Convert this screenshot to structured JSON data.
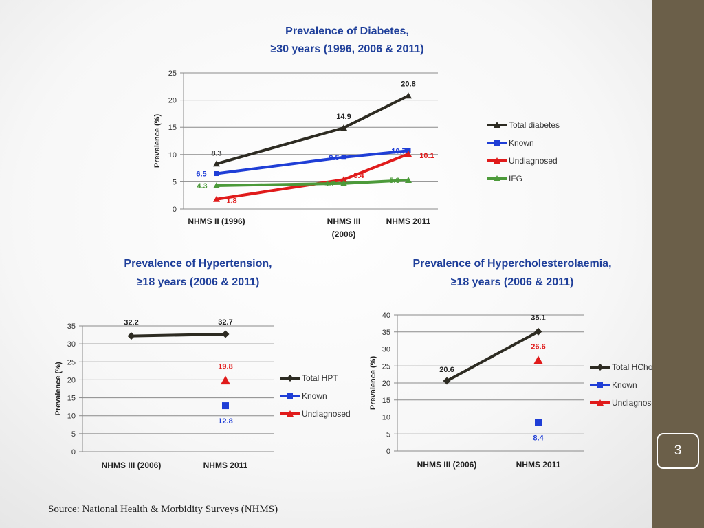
{
  "slide": {
    "page_number": "3",
    "source": "Source: National Health & Morbidity Surveys (NHMS)",
    "sidebar_color": "#6b5f49"
  },
  "colors": {
    "total": "#2d2b22",
    "known": "#1f3ed6",
    "undiagnosed": "#e01b1b",
    "ifg": "#4c9a3a",
    "title": "#1f3f9a"
  },
  "chart_data": [
    {
      "type": "line",
      "title": "Prevalence of Diabetes,",
      "subtitle": "≥30 years (1996, 2006 & 2011)",
      "ylabel": "Prevalence (%)",
      "xlabel": "",
      "x": [
        1996,
        2006,
        2011
      ],
      "categories": [
        "NHMS II (1996)",
        "NHMS III",
        "NHMS 2011"
      ],
      "category_sublabels": [
        "",
        "(2006)",
        ""
      ],
      "ylim": [
        0,
        25
      ],
      "yticks": [
        0,
        5,
        10,
        15,
        20,
        25
      ],
      "grid": true,
      "legend": "right",
      "series": [
        {
          "name": "Total diabetes",
          "values": [
            8.3,
            14.9,
            20.8
          ],
          "labels": [
            "8.3",
            "14.9",
            "20.8"
          ],
          "color": "#2d2b22",
          "marker": "triangle"
        },
        {
          "name": "Known",
          "values": [
            6.5,
            9.5,
            10.7
          ],
          "labels": [
            "6.5",
            "9.5",
            "10.7"
          ],
          "color": "#1f3ed6",
          "marker": "square"
        },
        {
          "name": "Undiagnosed",
          "values": [
            1.8,
            5.4,
            10.1
          ],
          "labels": [
            "1.8",
            "5.4",
            "10.1"
          ],
          "color": "#e01b1b",
          "marker": "triangle"
        },
        {
          "name": "IFG",
          "values": [
            4.3,
            4.7,
            5.3
          ],
          "labels": [
            "4.3",
            "4.7",
            "5.3"
          ],
          "color": "#4c9a3a",
          "marker": "triangle"
        }
      ]
    },
    {
      "type": "line",
      "title": "Prevalence of Hypertension,",
      "subtitle": "≥18 years (2006 & 2011)",
      "ylabel": "Prevalence (%)",
      "xlabel": "",
      "categories": [
        "NHMS III (2006)",
        "NHMS 2011"
      ],
      "ylim": [
        0,
        35
      ],
      "yticks": [
        0,
        5,
        10,
        15,
        20,
        25,
        30,
        35
      ],
      "grid": true,
      "legend": "right",
      "series": [
        {
          "name": "Total HPT",
          "values": [
            32.2,
            32.7
          ],
          "labels": [
            "32.2",
            "32.7"
          ],
          "color": "#2d2b22",
          "marker": "diamond"
        },
        {
          "name": "Known",
          "values": [
            null,
            12.8
          ],
          "labels": [
            "",
            "12.8"
          ],
          "color": "#1f3ed6",
          "marker": "square"
        },
        {
          "name": "Undiagnosed",
          "values": [
            null,
            19.8
          ],
          "labels": [
            "",
            "19.8"
          ],
          "color": "#e01b1b",
          "marker": "triangle"
        }
      ]
    },
    {
      "type": "line",
      "title": "Prevalence of Hypercholesterolaemia,",
      "subtitle": "≥18 years (2006 & 2011)",
      "ylabel": "Prevalence (%)",
      "xlabel": "",
      "categories": [
        "NHMS III (2006)",
        "NHMS 2011"
      ],
      "ylim": [
        0,
        40
      ],
      "yticks": [
        0,
        5,
        10,
        15,
        20,
        25,
        30,
        35,
        40
      ],
      "grid": true,
      "legend": "right",
      "series": [
        {
          "name": "Total HChol",
          "values": [
            20.6,
            35.1
          ],
          "labels": [
            "20.6",
            "35.1"
          ],
          "color": "#2d2b22",
          "marker": "diamond"
        },
        {
          "name": "Known",
          "values": [
            null,
            8.4
          ],
          "labels": [
            "",
            "8.4"
          ],
          "color": "#1f3ed6",
          "marker": "square"
        },
        {
          "name": "Undiagnosed",
          "values": [
            null,
            26.6
          ],
          "labels": [
            "",
            "26.6"
          ],
          "color": "#e01b1b",
          "marker": "triangle"
        }
      ]
    }
  ]
}
